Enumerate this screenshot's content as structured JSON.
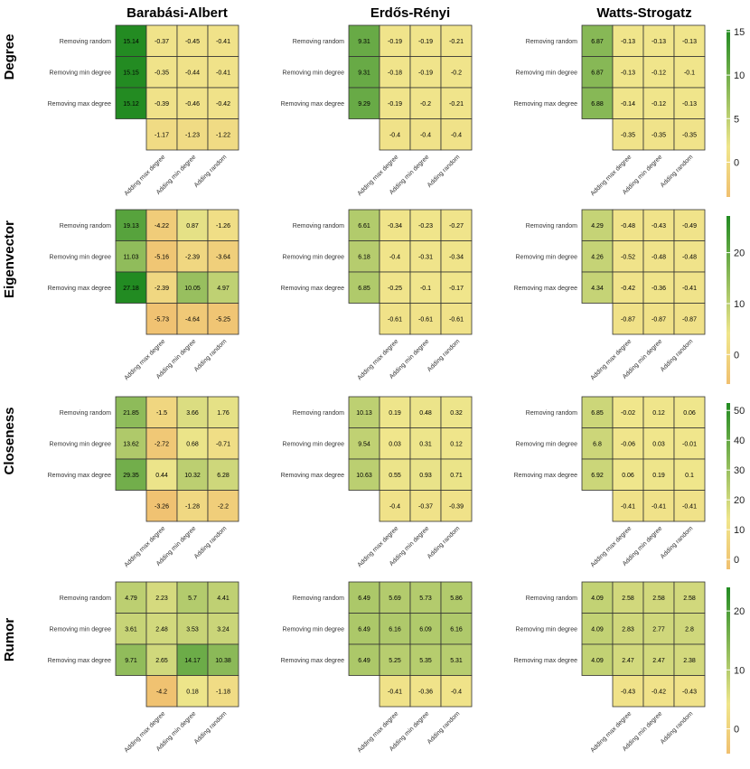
{
  "colors": {
    "low": "#f0c070",
    "mid": "#f0e68c",
    "high": "#228b22",
    "border": "#333333"
  },
  "chart_data": {
    "type": "heatmap",
    "column_titles": [
      "Barabási-Albert",
      "Erdős-Rényi",
      "Watts-Strogatz"
    ],
    "row_titles": [
      "Degree",
      "Eigenvector",
      "Closeness",
      "Rumor"
    ],
    "row_labels": [
      "Removing random",
      "Removing min degree",
      "Removing max degree"
    ],
    "col_labels": [
      "Adding max degree",
      "Adding min degree",
      "Adding random"
    ],
    "colorbars": [
      {
        "range": [
          -4,
          15.2
        ],
        "ticks": [
          0,
          5,
          10,
          15
        ]
      },
      {
        "range": [
          -5.8,
          27.2
        ],
        "ticks": [
          0,
          10,
          20
        ]
      },
      {
        "range": [
          -3.3,
          52.5
        ],
        "ticks": [
          0,
          10,
          20,
          30,
          40,
          50
        ]
      },
      {
        "range": [
          -4.2,
          24
        ],
        "ticks": [
          0,
          10,
          20
        ]
      }
    ],
    "panels": [
      [
        {
          "network": "Barabási-Albert",
          "measure": "Degree",
          "removal": [
            15.14,
            15.15,
            15.12
          ],
          "matrix": [
            [
              -0.37,
              -0.45,
              -0.41
            ],
            [
              -0.35,
              -0.44,
              -0.41
            ],
            [
              -0.39,
              -0.46,
              -0.42
            ]
          ],
          "adding": [
            -1.17,
            -1.23,
            -1.22
          ]
        },
        {
          "network": "Erdős-Rényi",
          "measure": "Degree",
          "removal": [
            9.31,
            9.31,
            9.29
          ],
          "matrix": [
            [
              -0.19,
              -0.19,
              -0.21
            ],
            [
              -0.18,
              -0.19,
              -0.2
            ],
            [
              -0.19,
              -0.2,
              -0.21
            ]
          ],
          "adding": [
            -0.4,
            -0.4,
            -0.4
          ]
        },
        {
          "network": "Watts-Strogatz",
          "measure": "Degree",
          "removal": [
            6.87,
            6.87,
            6.88
          ],
          "matrix": [
            [
              -0.13,
              -0.13,
              -0.13
            ],
            [
              -0.13,
              -0.12,
              -0.1
            ],
            [
              -0.14,
              -0.12,
              -0.13
            ]
          ],
          "adding": [
            -0.35,
            -0.35,
            -0.35
          ]
        }
      ],
      [
        {
          "network": "Barabási-Albert",
          "measure": "Eigenvector",
          "removal": [
            19.13,
            11.03,
            27.18
          ],
          "matrix": [
            [
              -4.22,
              0.87,
              -1.26
            ],
            [
              -5.16,
              -2.39,
              -3.64
            ],
            [
              -2.39,
              10.05,
              4.97
            ]
          ],
          "adding": [
            -5.73,
            -4.64,
            -5.25
          ]
        },
        {
          "network": "Erdős-Rényi",
          "measure": "Eigenvector",
          "removal": [
            6.61,
            6.18,
            6.85
          ],
          "matrix": [
            [
              -0.34,
              -0.23,
              -0.27
            ],
            [
              -0.4,
              -0.31,
              -0.34
            ],
            [
              -0.25,
              -0.1,
              -0.17
            ]
          ],
          "adding": [
            -0.61,
            -0.61,
            -0.61
          ]
        },
        {
          "network": "Watts-Strogatz",
          "measure": "Eigenvector",
          "removal": [
            4.29,
            4.26,
            4.34
          ],
          "matrix": [
            [
              -0.48,
              -0.43,
              -0.49
            ],
            [
              -0.52,
              -0.48,
              -0.48
            ],
            [
              -0.42,
              -0.36,
              -0.41
            ]
          ],
          "adding": [
            -0.87,
            -0.87,
            -0.87
          ]
        }
      ],
      [
        {
          "network": "Barabási-Albert",
          "measure": "Closeness",
          "removal": [
            21.85,
            13.62,
            29.35
          ],
          "matrix": [
            [
              -1.5,
              3.66,
              1.76
            ],
            [
              -2.72,
              0.68,
              -0.71
            ],
            [
              0.44,
              10.32,
              6.28
            ]
          ],
          "adding": [
            -3.26,
            -1.28,
            -2.2
          ]
        },
        {
          "network": "Erdős-Rényi",
          "measure": "Closeness",
          "removal": [
            10.13,
            9.54,
            10.63
          ],
          "matrix": [
            [
              0.19,
              0.48,
              0.32
            ],
            [
              0.03,
              0.31,
              0.12
            ],
            [
              0.55,
              0.93,
              0.71
            ]
          ],
          "adding": [
            -0.4,
            -0.37,
            -0.39
          ]
        },
        {
          "network": "Watts-Strogatz",
          "measure": "Closeness",
          "removal": [
            6.85,
            6.8,
            6.92
          ],
          "matrix": [
            [
              -0.02,
              0.12,
              0.06
            ],
            [
              -0.06,
              0.03,
              -0.01
            ],
            [
              0.06,
              0.19,
              0.1
            ]
          ],
          "adding": [
            -0.41,
            -0.41,
            -0.41
          ]
        }
      ],
      [
        {
          "network": "Barabási-Albert",
          "measure": "Rumor",
          "removal": [
            4.79,
            3.61,
            9.71
          ],
          "matrix": [
            [
              2.23,
              5.7,
              4.41
            ],
            [
              2.48,
              3.53,
              3.24
            ],
            [
              2.65,
              14.17,
              10.38
            ]
          ],
          "adding": [
            -4.2,
            0.18,
            -1.18
          ]
        },
        {
          "network": "Erdős-Rényi",
          "measure": "Rumor",
          "removal": [
            6.49,
            6.49,
            6.49
          ],
          "matrix": [
            [
              5.69,
              5.73,
              5.86
            ],
            [
              6.16,
              6.09,
              6.16
            ],
            [
              5.25,
              5.35,
              5.31
            ]
          ],
          "adding": [
            -0.41,
            -0.36,
            -0.4
          ]
        },
        {
          "network": "Watts-Strogatz",
          "measure": "Rumor",
          "removal": [
            4.09,
            4.09,
            4.09
          ],
          "matrix": [
            [
              2.58,
              2.58,
              2.58
            ],
            [
              2.83,
              2.77,
              2.8
            ],
            [
              2.47,
              2.47,
              2.38
            ]
          ],
          "adding": [
            -0.43,
            -0.42,
            -0.43
          ]
        }
      ]
    ]
  }
}
